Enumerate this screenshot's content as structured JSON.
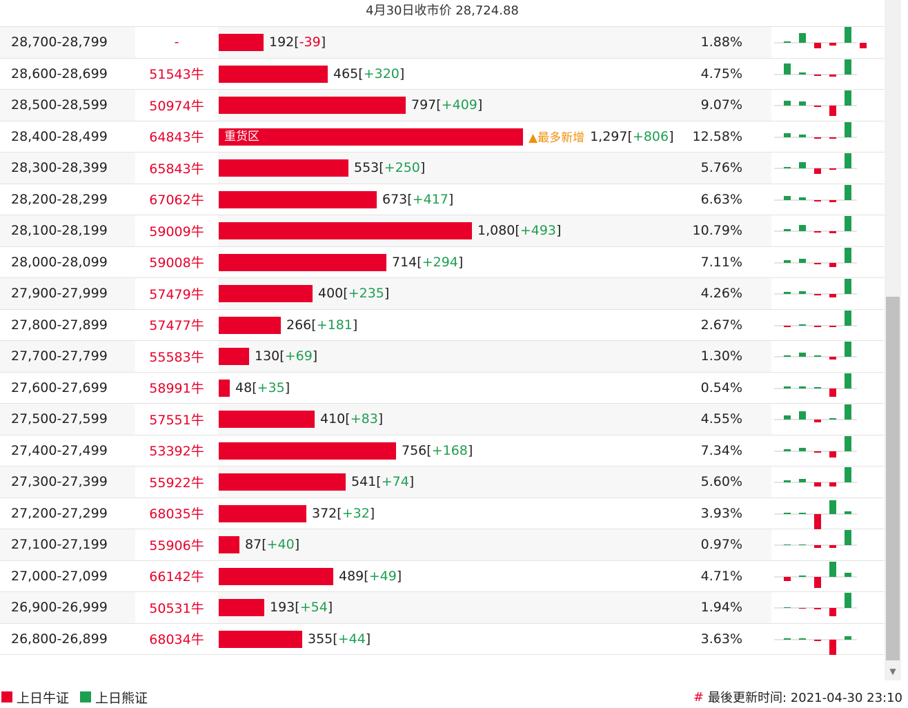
{
  "header": {
    "title": "4月30日收市价 28,724.88"
  },
  "colors": {
    "bull": "#e8002a",
    "bear": "#1e9e50",
    "most_new": "#f0900a"
  },
  "rows": [
    {
      "range": "28,700-28,799",
      "code": "-",
      "value": "192",
      "change": "-39",
      "pct": "1.88%",
      "bar_fraction": 0.148,
      "bars": [
        -2,
        -14,
        8,
        4,
        -24,
        8
      ]
    },
    {
      "range": "28,600-28,699",
      "code": "51543牛",
      "value": "465",
      "change": "+320",
      "pct": "4.75%",
      "bar_fraction": 0.359,
      "bars": [
        -16,
        -3,
        2,
        3,
        -22,
        0
      ]
    },
    {
      "range": "28,500-28,599",
      "code": "50974牛",
      "value": "797",
      "change": "+409",
      "pct": "9.07%",
      "bar_fraction": 0.614,
      "bars": [
        -7,
        -6,
        2,
        15,
        -22,
        0
      ]
    },
    {
      "range": "28,400-28,499",
      "code": "64843牛",
      "bar_label": "重货区",
      "most_label": "▲最多新增",
      "value": "1,297",
      "change": "+806",
      "pct": "12.58%",
      "bar_fraction": 1.0,
      "bars": [
        -6,
        -4,
        2,
        2,
        -22,
        0
      ]
    },
    {
      "range": "28,300-28,399",
      "code": "65843牛",
      "value": "553",
      "change": "+250",
      "pct": "5.76%",
      "bar_fraction": 0.426,
      "bars": [
        -2,
        -9,
        8,
        2,
        -22,
        0
      ]
    },
    {
      "range": "28,200-28,299",
      "code": "67062牛",
      "value": "673",
      "change": "+417",
      "pct": "6.63%",
      "bar_fraction": 0.519,
      "bars": [
        -6,
        -4,
        2,
        3,
        -22,
        0
      ]
    },
    {
      "range": "28,100-28,199",
      "code": "59009牛",
      "value": "1,080",
      "change": "+493",
      "pct": "10.79%",
      "bar_fraction": 0.833,
      "bars": [
        -3,
        -9,
        2,
        3,
        -22,
        0
      ]
    },
    {
      "range": "28,000-28,099",
      "code": "59008牛",
      "value": "714",
      "change": "+294",
      "pct": "7.11%",
      "bar_fraction": 0.551,
      "bars": [
        -4,
        -6,
        2,
        6,
        -22,
        0
      ]
    },
    {
      "range": "27,900-27,999",
      "code": "57479牛",
      "value": "400",
      "change": "+235",
      "pct": "4.26%",
      "bar_fraction": 0.308,
      "bars": [
        -3,
        -4,
        2,
        5,
        -22,
        0
      ]
    },
    {
      "range": "27,800-27,899",
      "code": "57477牛",
      "value": "266",
      "change": "+181",
      "pct": "2.67%",
      "bar_fraction": 0.205,
      "bars": [
        2,
        -2,
        2,
        2,
        -22,
        0
      ]
    },
    {
      "range": "27,700-27,799",
      "code": "55583牛",
      "value": "130",
      "change": "+69",
      "pct": "1.30%",
      "bar_fraction": 0.1,
      "bars": [
        -2,
        -6,
        -2,
        4,
        -22,
        0
      ]
    },
    {
      "range": "27,600-27,699",
      "code": "58991牛",
      "value": "48",
      "change": "+35",
      "pct": "0.54%",
      "bar_fraction": 0.037,
      "bars": [
        -3,
        -3,
        -2,
        12,
        -22,
        0
      ]
    },
    {
      "range": "27,500-27,599",
      "code": "57551牛",
      "value": "410",
      "change": "+83",
      "pct": "4.55%",
      "bar_fraction": 0.316,
      "bars": [
        -6,
        -12,
        4,
        -2,
        -22,
        0
      ]
    },
    {
      "range": "27,400-27,499",
      "code": "53392牛",
      "value": "756",
      "change": "+168",
      "pct": "7.34%",
      "bar_fraction": 0.583,
      "bars": [
        -3,
        -5,
        2,
        9,
        -22,
        0
      ]
    },
    {
      "range": "27,300-27,399",
      "code": "55922牛",
      "value": "541",
      "change": "+74",
      "pct": "5.60%",
      "bar_fraction": 0.417,
      "bars": [
        -3,
        -5,
        6,
        6,
        -22,
        0
      ]
    },
    {
      "range": "27,200-27,299",
      "code": "68035牛",
      "value": "372",
      "change": "+32",
      "pct": "3.93%",
      "bar_fraction": 0.287,
      "bars": [
        -2,
        -2,
        22,
        -20,
        -4,
        0
      ]
    },
    {
      "range": "27,100-27,199",
      "code": "55906牛",
      "value": "87",
      "change": "+40",
      "pct": "0.97%",
      "bar_fraction": 0.067,
      "bars": [
        -1,
        -1,
        4,
        4,
        -22,
        0
      ]
    },
    {
      "range": "27,000-27,099",
      "code": "66142牛",
      "value": "489",
      "change": "+49",
      "pct": "4.71%",
      "bar_fraction": 0.377,
      "bars": [
        6,
        -2,
        16,
        -22,
        -6,
        0
      ]
    },
    {
      "range": "26,900-26,999",
      "code": "50531牛",
      "value": "193",
      "change": "+54",
      "pct": "1.94%",
      "bar_fraction": 0.149,
      "bars": [
        -1,
        1,
        2,
        12,
        -22,
        0
      ]
    },
    {
      "range": "26,800-26,899",
      "code": "68034牛",
      "value": "355",
      "change": "+44",
      "pct": "3.63%",
      "bar_fraction": 0.274,
      "bars": [
        -2,
        -2,
        2,
        22,
        -5,
        0
      ]
    }
  ],
  "legend": {
    "bull_label": "上日牛证",
    "bear_label": "上日熊证"
  },
  "footer": {
    "hash": "#",
    "updated": "最後更新时间: 2021-04-30 23:10"
  }
}
